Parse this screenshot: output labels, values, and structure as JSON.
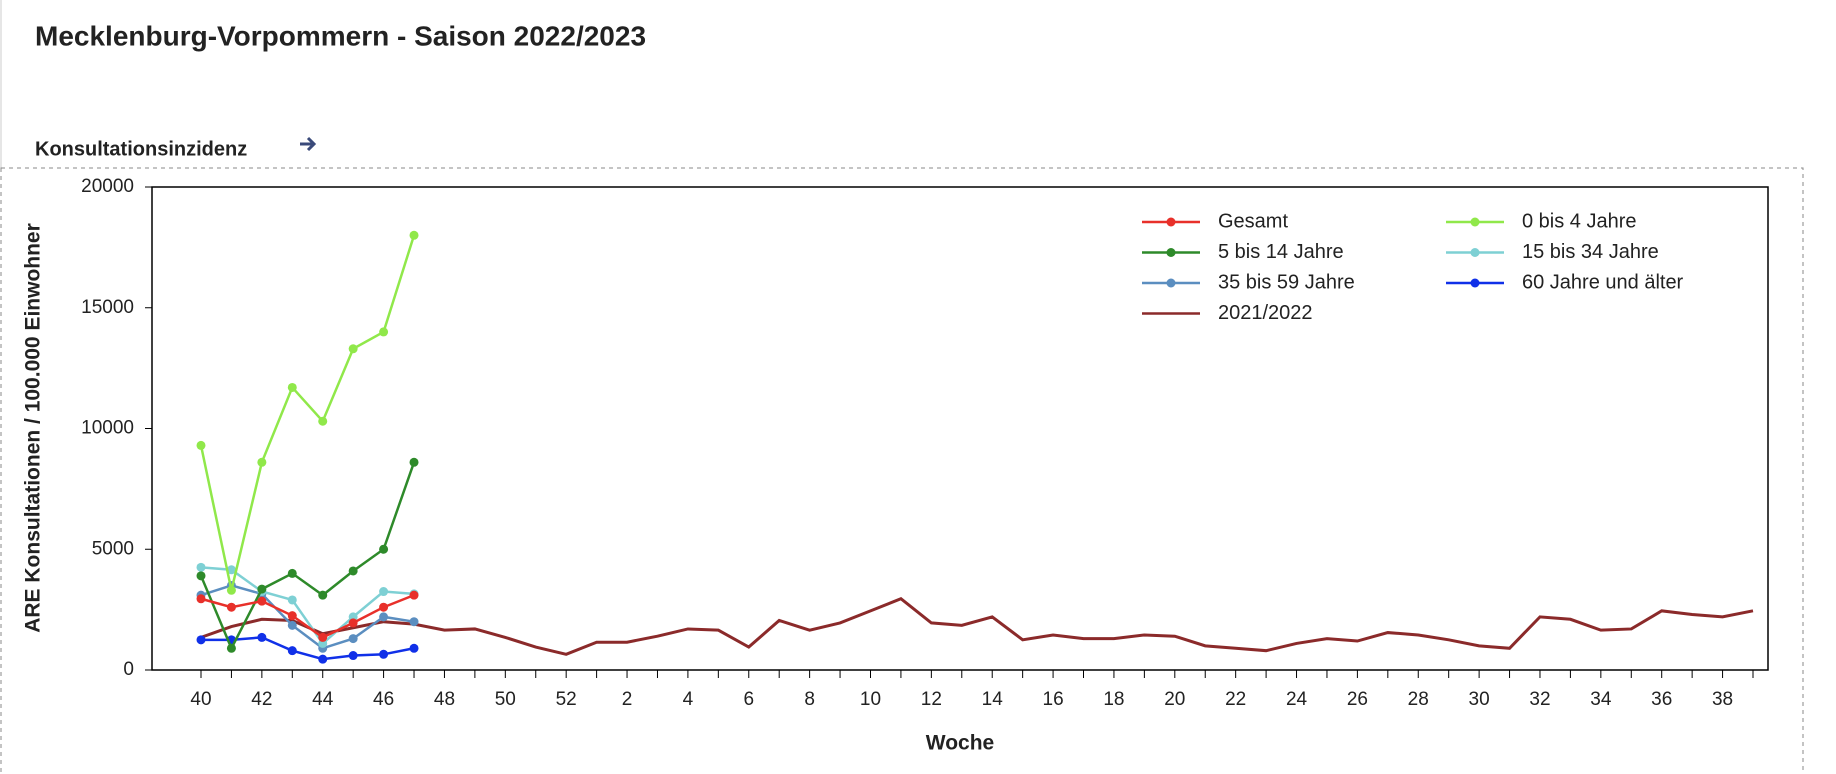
{
  "header": {
    "title": "Mecklenburg-Vorpommern - Saison 2022/2023",
    "section": "Konsultationsinzidenz"
  },
  "chart_data": {
    "type": "line",
    "xlabel": "Woche",
    "ylabel": "ARE Konsultationen / 100.000 Einwohner",
    "categories": [
      "40",
      null,
      "42",
      null,
      "44",
      null,
      "46",
      null,
      "48",
      null,
      "50",
      null,
      "52",
      null,
      "2",
      null,
      "4",
      null,
      "6",
      null,
      "8",
      null,
      "10",
      null,
      "12",
      null,
      "14",
      null,
      "16",
      null,
      "18",
      null,
      "20",
      null,
      "22",
      null,
      "24",
      null,
      "26",
      null,
      "28",
      null,
      "30",
      null,
      "32",
      null,
      "34",
      null,
      "36",
      null,
      "38",
      null
    ],
    "ylim": [
      0,
      20000
    ],
    "yticks": [
      0,
      5000,
      10000,
      15000,
      20000
    ],
    "legend": "upper right",
    "series": [
      {
        "name": "Gesamt",
        "color": "#e8302a",
        "markers": true,
        "values": [
          2950,
          2600,
          2850,
          2250,
          1350,
          1950,
          2600,
          3100,
          null,
          null,
          null,
          null,
          null,
          null,
          null,
          null,
          null,
          null,
          null,
          null,
          null,
          null,
          null,
          null,
          null,
          null,
          null,
          null,
          null,
          null,
          null,
          null,
          null,
          null,
          null,
          null,
          null,
          null,
          null,
          null,
          null,
          null,
          null,
          null,
          null,
          null,
          null,
          null,
          null,
          null,
          null,
          null
        ]
      },
      {
        "name": "0 bis 4 Jahre",
        "color": "#90e84a",
        "markers": true,
        "values": [
          9300,
          3300,
          8600,
          11700,
          10300,
          13300,
          14000,
          18000,
          null,
          null,
          null,
          null,
          null,
          null,
          null,
          null,
          null,
          null,
          null,
          null,
          null,
          null,
          null,
          null,
          null,
          null,
          null,
          null,
          null,
          null,
          null,
          null,
          null,
          null,
          null,
          null,
          null,
          null,
          null,
          null,
          null,
          null,
          null,
          null,
          null,
          null,
          null,
          null,
          null,
          null,
          null,
          null
        ]
      },
      {
        "name": "5 bis 14 Jahre",
        "color": "#2e8a2a",
        "markers": true,
        "values": [
          3900,
          900,
          3350,
          4000,
          3100,
          4100,
          5000,
          8600,
          null,
          null,
          null,
          null,
          null,
          null,
          null,
          null,
          null,
          null,
          null,
          null,
          null,
          null,
          null,
          null,
          null,
          null,
          null,
          null,
          null,
          null,
          null,
          null,
          null,
          null,
          null,
          null,
          null,
          null,
          null,
          null,
          null,
          null,
          null,
          null,
          null,
          null,
          null,
          null,
          null,
          null,
          null,
          null
        ]
      },
      {
        "name": "15 bis 34 Jahre",
        "color": "#7ed0d4",
        "markers": true,
        "values": [
          4250,
          4150,
          3250,
          2900,
          1100,
          2200,
          3250,
          3150,
          null,
          null,
          null,
          null,
          null,
          null,
          null,
          null,
          null,
          null,
          null,
          null,
          null,
          null,
          null,
          null,
          null,
          null,
          null,
          null,
          null,
          null,
          null,
          null,
          null,
          null,
          null,
          null,
          null,
          null,
          null,
          null,
          null,
          null,
          null,
          null,
          null,
          null,
          null,
          null,
          null,
          null,
          null,
          null
        ]
      },
      {
        "name": "35 bis 59 Jahre",
        "color": "#5b8ec0",
        "markers": true,
        "values": [
          3100,
          3500,
          3150,
          1850,
          900,
          1300,
          2200,
          2000,
          null,
          null,
          null,
          null,
          null,
          null,
          null,
          null,
          null,
          null,
          null,
          null,
          null,
          null,
          null,
          null,
          null,
          null,
          null,
          null,
          null,
          null,
          null,
          null,
          null,
          null,
          null,
          null,
          null,
          null,
          null,
          null,
          null,
          null,
          null,
          null,
          null,
          null,
          null,
          null,
          null,
          null,
          null,
          null
        ]
      },
      {
        "name": "60 Jahre und älter",
        "color": "#1030e8",
        "markers": true,
        "values": [
          1250,
          1250,
          1350,
          800,
          450,
          600,
          650,
          900,
          null,
          null,
          null,
          null,
          null,
          null,
          null,
          null,
          null,
          null,
          null,
          null,
          null,
          null,
          null,
          null,
          null,
          null,
          null,
          null,
          null,
          null,
          null,
          null,
          null,
          null,
          null,
          null,
          null,
          null,
          null,
          null,
          null,
          null,
          null,
          null,
          null,
          null,
          null,
          null,
          null,
          null,
          null,
          null
        ]
      },
      {
        "name": "2021/2022",
        "color": "#8b2a2a",
        "markers": false,
        "values": [
          1350,
          1800,
          2100,
          2050,
          1500,
          1750,
          2000,
          1900,
          1650,
          1700,
          1350,
          950,
          650,
          1150,
          1150,
          1400,
          1700,
          1650,
          950,
          2050,
          1650,
          1950,
          2450,
          2950,
          1950,
          1850,
          2200,
          1250,
          1450,
          1300,
          1300,
          1450,
          1400,
          1000,
          900,
          800,
          1100,
          1300,
          1200,
          1550,
          1450,
          1250,
          1000,
          900,
          2200,
          2100,
          1650,
          1700,
          2450,
          2300,
          2200,
          2450
        ]
      }
    ]
  }
}
